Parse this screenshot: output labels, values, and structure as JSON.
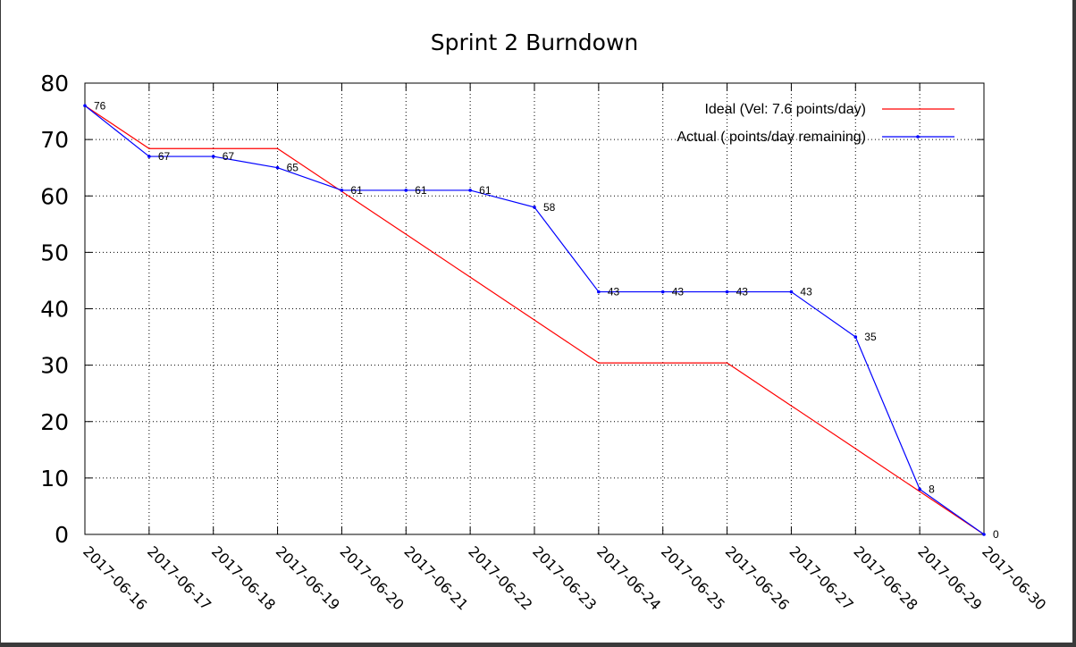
{
  "chart_data": {
    "type": "line",
    "title": "Sprint 2 Burndown",
    "xlabel": "",
    "ylabel": "",
    "categories": [
      "2017-06-16",
      "2017-06-17",
      "2017-06-18",
      "2017-06-19",
      "2017-06-20",
      "2017-06-21",
      "2017-06-22",
      "2017-06-23",
      "2017-06-24",
      "2017-06-25",
      "2017-06-26",
      "2017-06-27",
      "2017-06-28",
      "2017-06-29",
      "2017-06-30"
    ],
    "ylim": [
      0,
      80
    ],
    "yticks": [
      0,
      10,
      20,
      30,
      40,
      50,
      60,
      70,
      80
    ],
    "grid": true,
    "legend_position": "top-right",
    "series": [
      {
        "name": "Ideal (Vel: 7.6 points/day)",
        "color": "#ff0000",
        "marker": "none",
        "values": [
          76,
          68.4,
          68.4,
          68.4,
          60.8,
          53.2,
          45.6,
          38.0,
          30.4,
          30.4,
          30.4,
          22.8,
          15.2,
          7.6,
          0
        ]
      },
      {
        "name": "Actual ( points/day remaining)",
        "color": "#0000ff",
        "marker": "dot",
        "values": [
          76,
          67,
          67,
          65,
          61,
          61,
          61,
          58,
          43,
          43,
          43,
          43,
          35,
          8,
          0
        ],
        "labels": [
          "76",
          "67",
          "67",
          "65",
          "61",
          "61",
          "61",
          "58",
          "43",
          "43",
          "43",
          "43",
          "35",
          "8",
          "0"
        ]
      }
    ]
  }
}
